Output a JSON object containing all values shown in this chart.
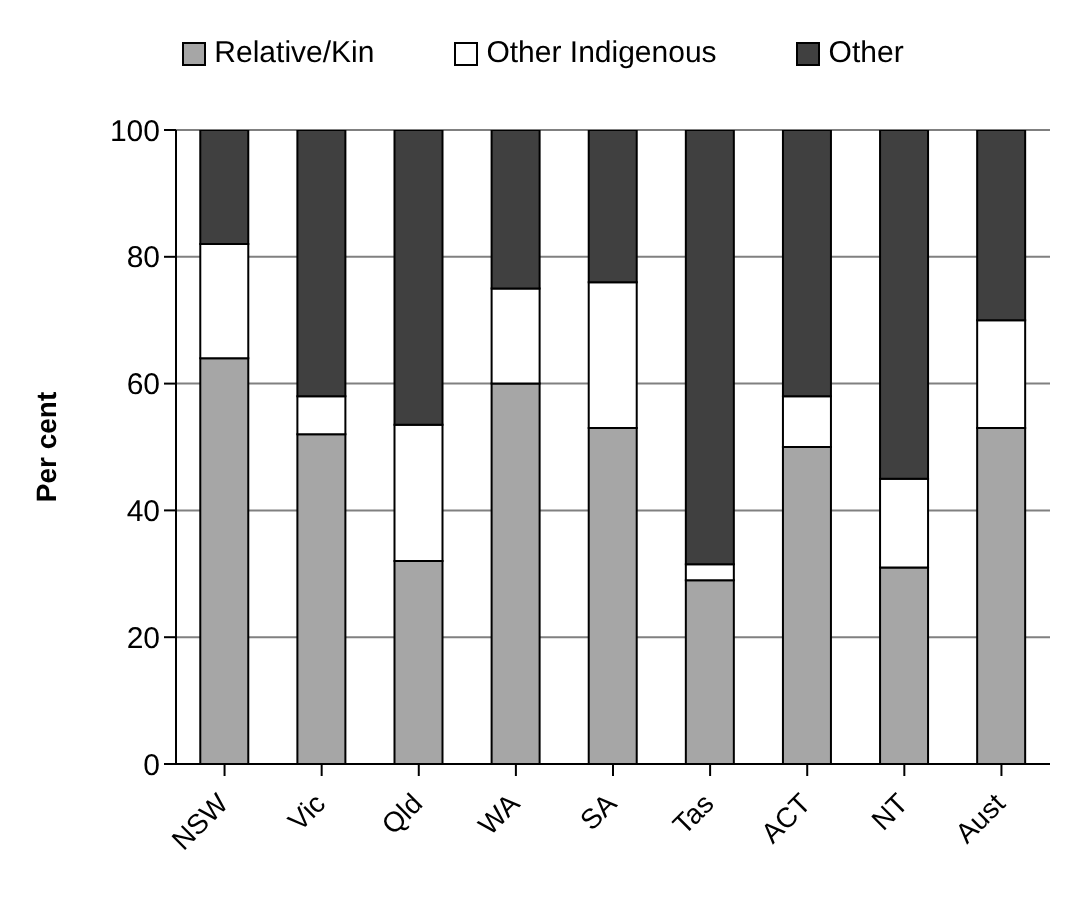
{
  "chart_data": {
    "type": "bar",
    "stacked": true,
    "ylabel": "Per cent",
    "categories": [
      "NSW",
      "Vic",
      "Qld",
      "WA",
      "SA",
      "Tas",
      "ACT",
      "NT",
      "Aust"
    ],
    "series": [
      {
        "name": "Relative/Kin",
        "color": "#a6a6a6",
        "values": [
          64,
          52,
          32,
          60,
          53,
          29,
          50,
          31,
          53
        ]
      },
      {
        "name": "Other Indigenous",
        "color": "#ffffff",
        "values": [
          18,
          6,
          21.5,
          15,
          23,
          2.5,
          8,
          14,
          17
        ]
      },
      {
        "name": "Other",
        "color": "#404040",
        "values": [
          18,
          42,
          46.5,
          25,
          24,
          68.5,
          42,
          55,
          30
        ]
      }
    ],
    "ylim": [
      0,
      100
    ],
    "yticks": [
      0,
      20,
      40,
      60,
      80,
      100
    ],
    "grid": "y",
    "legend": "top"
  }
}
